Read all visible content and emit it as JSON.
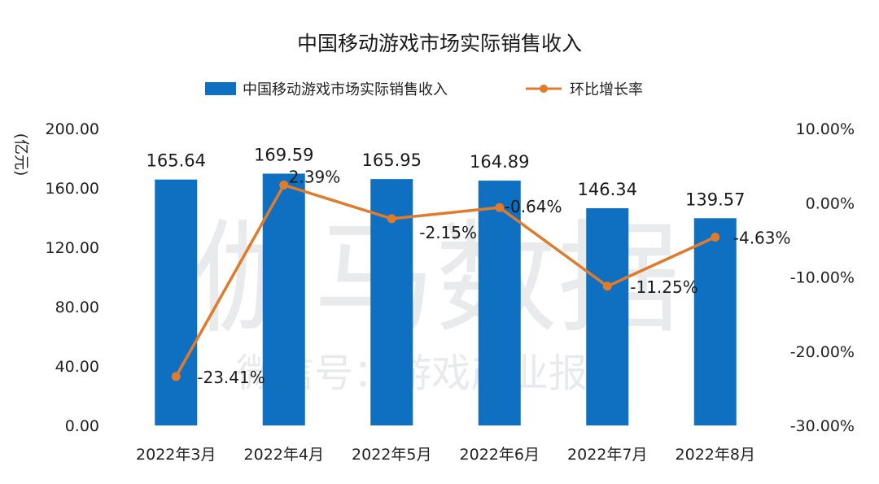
{
  "chart_data": {
    "type": "bar",
    "title": "中国移动游戏市场实际销售收入",
    "ylabel": "(亿元)",
    "categories": [
      "2022年3月",
      "2022年4月",
      "2022年5月",
      "2022年6月",
      "2022年7月",
      "2022年8月"
    ],
    "ylim": [
      0,
      200
    ],
    "yticks": [
      "0.00",
      "40.00",
      "80.00",
      "120.00",
      "160.00",
      "200.00"
    ],
    "y2lim": [
      -30,
      10
    ],
    "y2ticks": [
      "-30.00%",
      "-20.00%",
      "-10.00%",
      "0.00%",
      "10.00%"
    ],
    "series": [
      {
        "name": "中国移动游戏市场实际销售收入",
        "kind": "bar",
        "axis": "left",
        "values": [
          165.64,
          169.59,
          165.95,
          164.89,
          146.34,
          139.57
        ],
        "labels": [
          "165.64",
          "169.59",
          "165.95",
          "164.89",
          "146.34",
          "139.57"
        ]
      },
      {
        "name": "环比增长率",
        "kind": "line",
        "axis": "right",
        "values": [
          -23.41,
          2.39,
          -2.15,
          -0.64,
          -11.25,
          -4.63
        ],
        "labels": [
          "-23.41%",
          "2.39%",
          "-2.15%",
          "-0.64%",
          "-11.25%",
          "-4.63%"
        ]
      }
    ],
    "grid": false,
    "legend": "top-center"
  },
  "watermark": {
    "main": "伽马数据",
    "sub": "微信号：游戏产业报告"
  },
  "colors": {
    "bar": "#0f6fc0",
    "line": "#e07b2c"
  }
}
